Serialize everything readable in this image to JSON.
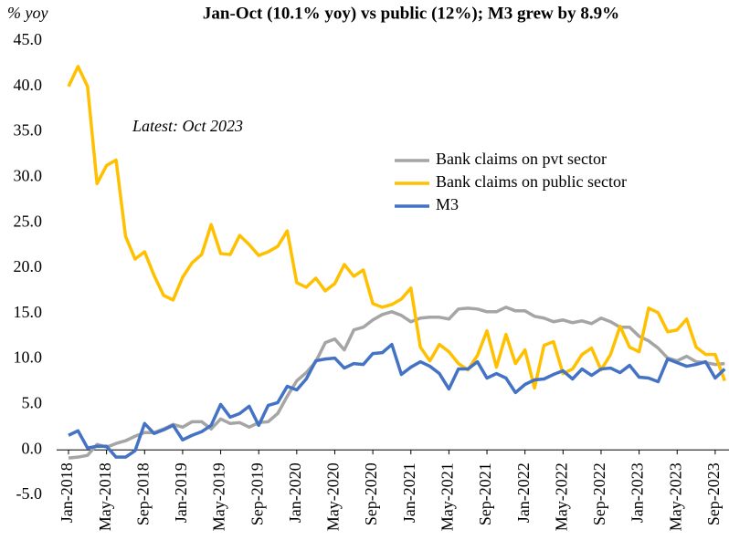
{
  "chart_data": {
    "type": "line",
    "title": "Jan-Oct (10.1% yoy) vs public (12%); M3 grew by 8.9%",
    "y_axis_label": "% yoy",
    "annotation": "Latest: Oct 2023",
    "categories": [
      "Jan-2018",
      null,
      null,
      null,
      "May-2018",
      null,
      null,
      null,
      "Sep-2018",
      null,
      null,
      null,
      "Jan-2019",
      null,
      null,
      null,
      "May-2019",
      null,
      null,
      null,
      "Sep-2019",
      null,
      null,
      null,
      "Jan-2020",
      null,
      null,
      null,
      "May-2020",
      null,
      null,
      null,
      "Sep-2020",
      null,
      null,
      null,
      "Jan-2021",
      null,
      null,
      null,
      "May-2021",
      null,
      null,
      null,
      "Sep-2021",
      null,
      null,
      null,
      "Jan-2022",
      null,
      null,
      null,
      "May-2022",
      null,
      null,
      null,
      "Sep-2022",
      null,
      null,
      null,
      "Jan-2023",
      null,
      null,
      null,
      "May-2023",
      null,
      null,
      null,
      "Sep-2023",
      null
    ],
    "series": [
      {
        "name": "Bank claims on pvt sector",
        "color": "#a5a5a5",
        "values": [
          -0.9,
          -0.8,
          -0.6,
          0.6,
          0.3,
          0.7,
          1,
          1.5,
          1.9,
          1.9,
          2.3,
          2.8,
          2.5,
          3.1,
          3.1,
          2.3,
          3.4,
          2.9,
          3,
          2.5,
          3,
          3.1,
          4,
          5.9,
          7.6,
          8.5,
          9.7,
          11.8,
          12.2,
          11,
          13.2,
          13.5,
          14.3,
          14.9,
          15.2,
          14.8,
          14.1,
          14.5,
          14.6,
          14.6,
          14.4,
          15.5,
          15.6,
          15.5,
          15.2,
          15.2,
          15.7,
          15.3,
          15.3,
          14.7,
          14.5,
          14.1,
          14.3,
          14,
          14.2,
          13.9,
          14.5,
          14.1,
          13.5,
          13.5,
          12.5,
          12,
          11.2,
          10.1,
          9.8,
          10.3,
          9.7,
          9.6,
          9.4,
          9.5
        ]
      },
      {
        "name": "Bank claims on public sector",
        "color": "#ffc000",
        "values": [
          40,
          42.2,
          40,
          29.3,
          31.3,
          31.9,
          23.5,
          21,
          21.8,
          19.2,
          17,
          16.5,
          19,
          20.6,
          21.5,
          24.8,
          21.6,
          21.5,
          23.6,
          22.6,
          21.4,
          21.8,
          22.4,
          24.1,
          18.4,
          17.9,
          18.9,
          17.5,
          18.3,
          20.4,
          19.1,
          19.8,
          16.1,
          15.7,
          16,
          16.6,
          17.8,
          11.3,
          9.8,
          11.6,
          10.8,
          9.5,
          8.8,
          10.4,
          13.1,
          9.1,
          12.7,
          9.5,
          11,
          6.8,
          11.5,
          11.9,
          8.4,
          8.9,
          10.5,
          11.2,
          8.8,
          10.5,
          13.6,
          11.3,
          10.8,
          15.6,
          15.1,
          13,
          13.2,
          14.4,
          11.3,
          10.5,
          10.5,
          7.6
        ]
      },
      {
        "name": "M3",
        "color": "#4472c4",
        "values": [
          1.6,
          2.1,
          0.2,
          0.4,
          0.4,
          -0.8,
          -0.8,
          -0.1,
          2.9,
          1.8,
          2.2,
          2.7,
          1.1,
          1.6,
          2,
          2.7,
          5,
          3.6,
          4,
          4.8,
          2.7,
          4.9,
          5.2,
          7,
          6.6,
          7.8,
          9.8,
          10,
          10.1,
          9,
          9.5,
          9.4,
          10.6,
          10.7,
          11.6,
          8.3,
          9.1,
          9.7,
          9.2,
          8.4,
          6.7,
          8.9,
          8.9,
          9.7,
          7.9,
          8.4,
          7.9,
          6.3,
          7.2,
          7.7,
          7.8,
          8.3,
          8.7,
          7.8,
          8.9,
          8.2,
          8.9,
          9,
          8.5,
          9.3,
          8,
          7.9,
          7.5,
          10,
          9.6,
          9.2,
          9.4,
          9.7,
          7.9,
          8.9
        ]
      }
    ],
    "ylim": [
      -5,
      45
    ],
    "yticks": [
      {
        "value": -5,
        "label": "-5.0"
      },
      {
        "value": 0,
        "label": "0.0"
      },
      {
        "value": 5,
        "label": "5.0"
      },
      {
        "value": 10,
        "label": "10.0"
      },
      {
        "value": 15,
        "label": "15.0"
      },
      {
        "value": 20,
        "label": "20.0"
      },
      {
        "value": 25,
        "label": "25.0"
      },
      {
        "value": 30,
        "label": "30.0"
      },
      {
        "value": 35,
        "label": "35.0"
      },
      {
        "value": 40,
        "label": "40.0"
      },
      {
        "value": 45,
        "label": "45.0"
      }
    ],
    "grid": false
  }
}
